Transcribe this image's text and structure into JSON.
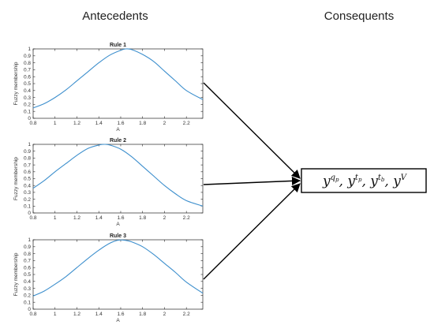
{
  "headings": {
    "antecedents": "Antecedents",
    "consequents": "Consequents"
  },
  "consequent_box": {
    "terms": [
      {
        "base": "y",
        "sup": "q",
        "sub": "p"
      },
      {
        "base": "y",
        "sup": "t",
        "sub": "p"
      },
      {
        "base": "y",
        "sup": "t",
        "sub": "b"
      },
      {
        "base": "y",
        "sup": "V",
        "sub": ""
      }
    ]
  },
  "colors": {
    "curve": "#3d8fcd",
    "axis": "#262626",
    "arrow": "#000000"
  },
  "chart_data": [
    {
      "type": "line",
      "title": "Rule 1",
      "xlabel": "A",
      "ylabel": "Fuzzy membership",
      "xlim": [
        0.8,
        2.35
      ],
      "ylim": [
        0,
        1
      ],
      "xticks": [
        "0.8",
        "1",
        "1.2",
        "1.4",
        "1.6",
        "1.8",
        "2",
        "2.2"
      ],
      "yticks": [
        "0",
        "0.1",
        "0.2",
        "0.3",
        "0.4",
        "0.5",
        "0.6",
        "0.7",
        "0.8",
        "0.9",
        "1"
      ],
      "series": [
        {
          "x": [
            0.8,
            0.9,
            1.0,
            1.1,
            1.2,
            1.3,
            1.4,
            1.5,
            1.6,
            1.65,
            1.7,
            1.8,
            1.9,
            2.0,
            2.1,
            2.2,
            2.35
          ],
          "y": [
            0.15,
            0.21,
            0.3,
            0.41,
            0.54,
            0.67,
            0.8,
            0.91,
            0.98,
            1.0,
            0.99,
            0.92,
            0.82,
            0.68,
            0.54,
            0.4,
            0.27
          ]
        }
      ]
    },
    {
      "type": "line",
      "title": "Rule 2",
      "xlabel": "A",
      "ylabel": "Fuzzy membership",
      "xlim": [
        0.8,
        2.35
      ],
      "ylim": [
        0,
        1
      ],
      "xticks": [
        "0.8",
        "1",
        "1.2",
        "1.4",
        "1.6",
        "1.8",
        "2",
        "2.2"
      ],
      "yticks": [
        "0",
        "0.1",
        "0.2",
        "0.3",
        "0.4",
        "0.5",
        "0.6",
        "0.7",
        "0.8",
        "0.9",
        "1"
      ],
      "series": [
        {
          "x": [
            0.8,
            0.9,
            1.0,
            1.1,
            1.2,
            1.3,
            1.4,
            1.45,
            1.5,
            1.6,
            1.7,
            1.8,
            1.9,
            2.0,
            2.1,
            2.2,
            2.35
          ],
          "y": [
            0.36,
            0.47,
            0.6,
            0.72,
            0.84,
            0.94,
            0.99,
            1.0,
            0.99,
            0.93,
            0.82,
            0.68,
            0.54,
            0.4,
            0.28,
            0.18,
            0.1
          ]
        }
      ]
    },
    {
      "type": "line",
      "title": "Rule 3",
      "xlabel": "A",
      "ylabel": "Fuzzy membership",
      "xlim": [
        0.8,
        2.35
      ],
      "ylim": [
        0,
        1
      ],
      "xticks": [
        "0.8",
        "1",
        "1.2",
        "1.4",
        "1.6",
        "1.8",
        "2",
        "2.2"
      ],
      "yticks": [
        "0",
        "0.1",
        "0.2",
        "0.3",
        "0.4",
        "0.5",
        "0.6",
        "0.7",
        "0.8",
        "0.9",
        "1"
      ],
      "series": [
        {
          "x": [
            0.8,
            0.9,
            1.0,
            1.1,
            1.2,
            1.3,
            1.4,
            1.5,
            1.58,
            1.65,
            1.7,
            1.8,
            1.9,
            2.0,
            2.1,
            2.2,
            2.35
          ],
          "y": [
            0.19,
            0.26,
            0.36,
            0.47,
            0.6,
            0.73,
            0.85,
            0.95,
            0.995,
            0.99,
            0.97,
            0.9,
            0.79,
            0.66,
            0.53,
            0.39,
            0.23
          ]
        }
      ]
    }
  ]
}
